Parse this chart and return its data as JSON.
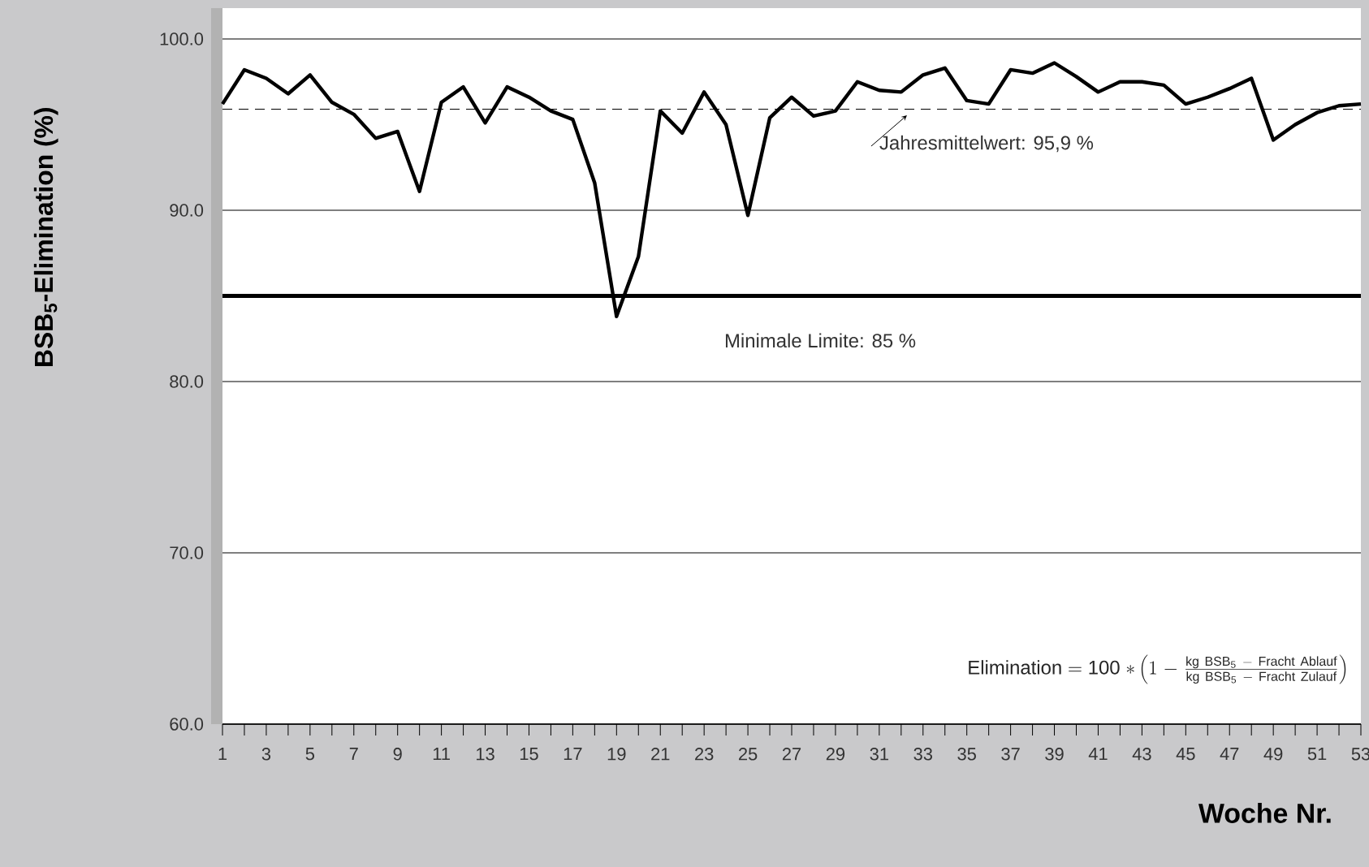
{
  "chart_data": {
    "type": "line",
    "x": [
      1,
      2,
      3,
      4,
      5,
      6,
      7,
      8,
      9,
      10,
      11,
      12,
      13,
      14,
      15,
      16,
      17,
      18,
      19,
      20,
      21,
      22,
      23,
      24,
      25,
      26,
      27,
      28,
      29,
      30,
      31,
      32,
      33,
      34,
      35,
      36,
      37,
      38,
      39,
      40,
      41,
      42,
      43,
      44,
      45,
      46,
      47,
      48,
      49,
      50,
      51,
      52,
      53
    ],
    "series": [
      {
        "color": "#000000",
        "values": [
          96.2,
          98.2,
          97.7,
          96.8,
          97.9,
          96.3,
          95.6,
          94.2,
          94.6,
          91.1,
          96.3,
          97.2,
          95.1,
          97.2,
          96.6,
          95.8,
          95.3,
          91.6,
          83.8,
          87.3,
          95.8,
          94.5,
          96.9,
          95.0,
          89.7,
          95.4,
          96.6,
          95.5,
          95.8,
          97.5,
          97.0,
          96.9,
          97.9,
          98.3,
          96.4,
          96.2,
          98.2,
          98.0,
          98.6,
          97.8,
          96.9,
          97.5,
          97.5,
          97.3,
          96.2,
          96.6,
          97.1,
          97.7,
          94.1,
          95.0,
          95.7,
          96.1,
          96.2
        ]
      }
    ],
    "xlim": [
      1,
      53
    ],
    "ylim": [
      60,
      101.8
    ],
    "xticks": [
      1,
      {
        "value": 2,
        "label": null
      },
      3,
      {
        "value": 4,
        "label": null
      },
      5,
      {
        "value": 6,
        "label": null
      },
      7,
      {
        "value": 8,
        "label": null
      },
      9,
      {
        "value": 10,
        "label": null
      },
      11,
      {
        "value": 12,
        "label": null
      },
      13,
      {
        "value": 14,
        "label": null
      },
      15,
      {
        "value": 16,
        "label": null
      },
      17,
      {
        "value": 18,
        "label": null
      },
      19,
      {
        "value": 20,
        "label": null
      },
      21,
      {
        "value": 22,
        "label": null
      },
      23,
      {
        "value": 24,
        "label": null
      },
      25,
      {
        "value": 26,
        "label": null
      },
      27,
      {
        "value": 28,
        "label": null
      },
      29,
      {
        "value": 30,
        "label": null
      },
      31,
      {
        "value": 32,
        "label": null
      },
      33,
      {
        "value": 34,
        "label": null
      },
      35,
      {
        "value": 36,
        "label": null
      },
      37,
      {
        "value": 38,
        "label": null
      },
      39,
      {
        "value": 40,
        "label": null
      },
      41,
      {
        "value": 42,
        "label": null
      },
      43,
      {
        "value": 44,
        "label": null
      },
      45,
      {
        "value": 46,
        "label": null
      },
      47,
      {
        "value": 48,
        "label": null
      },
      49,
      {
        "value": 50,
        "label": null
      },
      51,
      {
        "value": 52,
        "label": null
      },
      53
    ],
    "yticks": [
      {
        "value": 60,
        "label": "60.0"
      },
      {
        "value": 70,
        "label": "70.0"
      },
      {
        "value": 80,
        "label": "80.0"
      },
      {
        "value": 90,
        "label": "90.0"
      },
      {
        "value": 100,
        "label": "100.0"
      }
    ],
    "xlabel": "Woche Nr.",
    "ylabel": "BSB$_{5}$-Elimination (%)",
    "grid": "y",
    "marker": "none",
    "line_style": "solid",
    "ref_lines": [
      {
        "axis": "y",
        "value": 95.9,
        "label": "Jahresmittelwert: 95,9 %",
        "color": "#000000",
        "line_style": "dashed"
      },
      {
        "axis": "y",
        "value": 85,
        "label": "Minimale Limite: 85 %",
        "color": "#000000",
        "line_style": "solid"
      }
    ],
    "annotations": [
      "\\mathrm{Elimination = 100\\ *}\\left(1\\ \\mathrm{-}\\ \\frac{\\mathrm{kg\\ BSB_{5}\\ -\\ Fracht\\ Ablauf}}{\\mathrm{kg\\ BSB_{5}\\ -\\ Fracht\\ Zulauf}}\\right)"
    ]
  }
}
